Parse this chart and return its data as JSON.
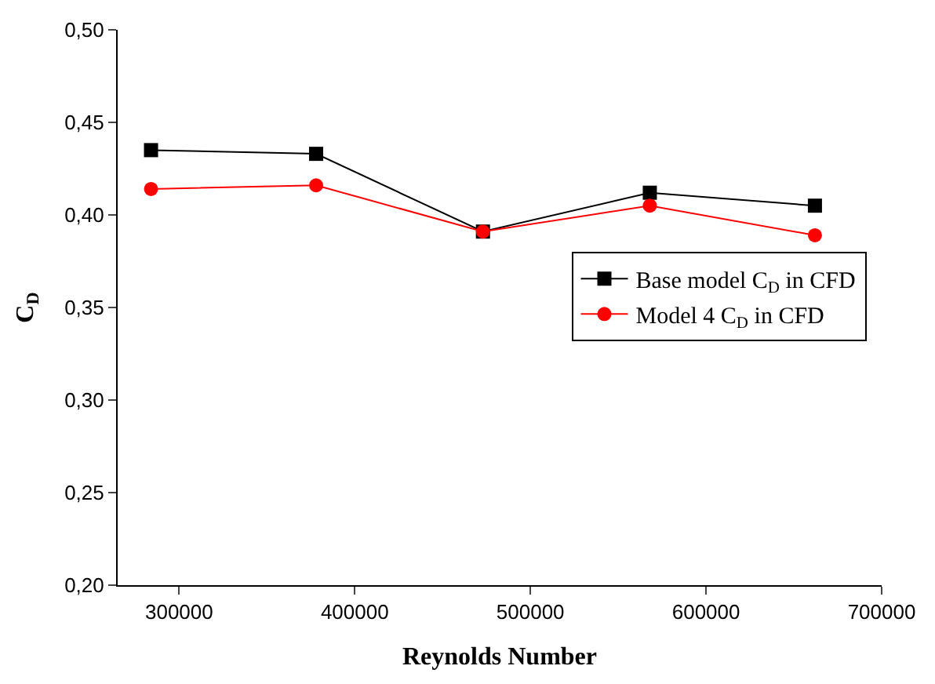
{
  "chart_data": {
    "type": "line",
    "xlabel": "Reynolds Number",
    "ylabel": "C$_{D}$",
    "x": [
      284000,
      378000,
      473000,
      568000,
      662000
    ],
    "series": [
      {
        "name": "Base model C$_{D}$ in CFD",
        "color": "#000000",
        "marker": "square",
        "values": [
          0.435,
          0.433,
          0.391,
          0.412,
          0.405
        ]
      },
      {
        "name": "Model 4 C$_{D}$ in CFD",
        "color": "#ff0000",
        "marker": "circle",
        "values": [
          0.414,
          0.416,
          0.391,
          0.405,
          0.389
        ]
      }
    ],
    "xlim": [
      265000,
      700000
    ],
    "xticks": [
      300000,
      400000,
      500000,
      600000,
      700000
    ],
    "ylim": [
      0.2,
      0.5
    ],
    "yticks": [
      {
        "value": 0.2,
        "label": "0,20"
      },
      {
        "value": 0.25,
        "label": "0,25"
      },
      {
        "value": 0.3,
        "label": "0,30"
      },
      {
        "value": 0.35,
        "label": "0,35"
      },
      {
        "value": 0.4,
        "label": "0,40"
      },
      {
        "value": 0.45,
        "label": "0,45"
      },
      {
        "value": 0.5,
        "label": "0,50"
      }
    ],
    "legend": "right",
    "line_style": "solid"
  }
}
